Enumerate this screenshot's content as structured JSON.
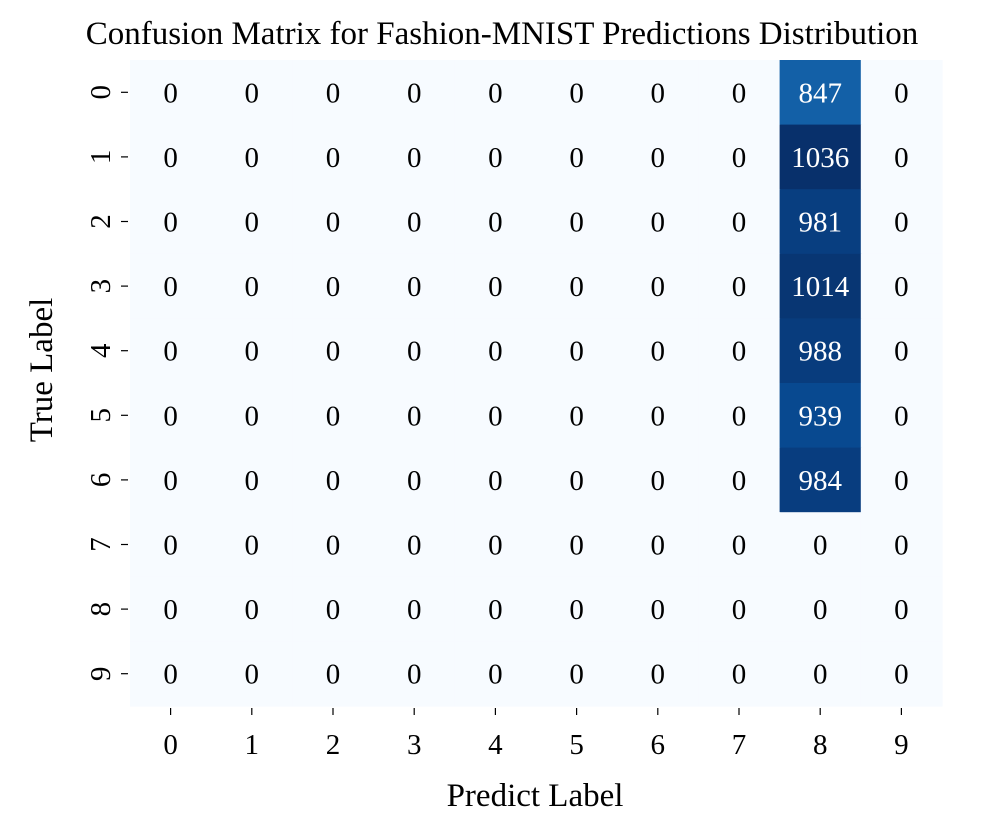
{
  "chart_data": {
    "type": "heatmap",
    "title": "Confusion Matrix for Fashion-MNIST Predictions Distribution",
    "xlabel": "Predict Label",
    "ylabel": "True Label",
    "x_categories": [
      "0",
      "1",
      "2",
      "3",
      "4",
      "5",
      "6",
      "7",
      "8",
      "9"
    ],
    "y_categories": [
      "0",
      "1",
      "2",
      "3",
      "4",
      "5",
      "6",
      "7",
      "8",
      "9"
    ],
    "values": [
      [
        0,
        0,
        0,
        0,
        0,
        0,
        0,
        0,
        847,
        0
      ],
      [
        0,
        0,
        0,
        0,
        0,
        0,
        0,
        0,
        1036,
        0
      ],
      [
        0,
        0,
        0,
        0,
        0,
        0,
        0,
        0,
        981,
        0
      ],
      [
        0,
        0,
        0,
        0,
        0,
        0,
        0,
        0,
        1014,
        0
      ],
      [
        0,
        0,
        0,
        0,
        0,
        0,
        0,
        0,
        988,
        0
      ],
      [
        0,
        0,
        0,
        0,
        0,
        0,
        0,
        0,
        939,
        0
      ],
      [
        0,
        0,
        0,
        0,
        0,
        0,
        0,
        0,
        984,
        0
      ],
      [
        0,
        0,
        0,
        0,
        0,
        0,
        0,
        0,
        0,
        0
      ],
      [
        0,
        0,
        0,
        0,
        0,
        0,
        0,
        0,
        0,
        0
      ],
      [
        0,
        0,
        0,
        0,
        0,
        0,
        0,
        0,
        0,
        0
      ]
    ],
    "colormap": "Blues",
    "color_low": "#f7fbff",
    "color_high": "#08306b",
    "colorbar": false,
    "grid": false
  }
}
